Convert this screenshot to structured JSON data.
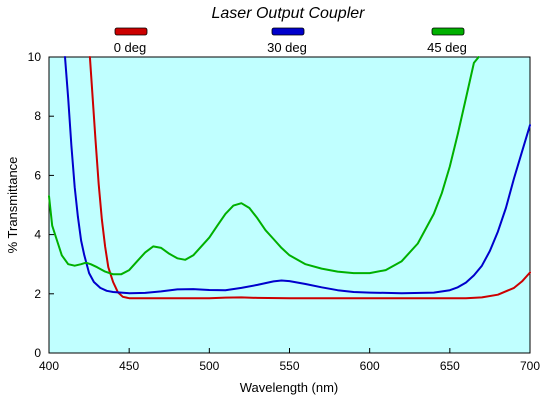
{
  "chart_data": {
    "type": "line",
    "title": "Laser Output Coupler",
    "xlabel": "Wavelength (nm)",
    "ylabel": "%  Transmittance",
    "xlim": [
      400,
      700
    ],
    "ylim": [
      0,
      10
    ],
    "xticks": [
      400,
      450,
      500,
      550,
      600,
      650,
      700
    ],
    "yticks": [
      0,
      2,
      4,
      6,
      8,
      10
    ],
    "plot_background": "#c0ffff",
    "grid": false,
    "legend_position": "top",
    "series": [
      {
        "name": "0 deg",
        "color": "#cc0000",
        "x": [
          425.5,
          427,
          429,
          431,
          433,
          435,
          437,
          440,
          443,
          446,
          450,
          460,
          480,
          500,
          510,
          520,
          530,
          550,
          600,
          640,
          660,
          670,
          680,
          690,
          695,
          700
        ],
        "y": [
          10,
          8.8,
          7.2,
          5.7,
          4.5,
          3.6,
          2.9,
          2.4,
          2.05,
          1.9,
          1.85,
          1.85,
          1.85,
          1.85,
          1.87,
          1.88,
          1.86,
          1.85,
          1.85,
          1.85,
          1.85,
          1.88,
          1.97,
          2.2,
          2.42,
          2.72
        ]
      },
      {
        "name": "30 deg",
        "color": "#0000cc",
        "x": [
          410,
          412,
          414,
          416,
          418,
          420,
          422,
          425,
          428,
          432,
          436,
          440,
          450,
          460,
          470,
          480,
          490,
          500,
          510,
          520,
          530,
          540,
          545,
          550,
          560,
          570,
          580,
          590,
          600,
          620,
          640,
          650,
          655,
          660,
          665,
          670,
          675,
          680,
          685,
          690,
          695,
          700
        ],
        "y": [
          10,
          8.6,
          7.0,
          5.6,
          4.6,
          3.8,
          3.3,
          2.7,
          2.4,
          2.2,
          2.1,
          2.06,
          2.02,
          2.03,
          2.08,
          2.15,
          2.16,
          2.13,
          2.12,
          2.2,
          2.3,
          2.42,
          2.45,
          2.43,
          2.33,
          2.22,
          2.12,
          2.06,
          2.04,
          2.02,
          2.04,
          2.12,
          2.22,
          2.38,
          2.62,
          2.95,
          3.45,
          4.1,
          4.9,
          5.9,
          6.8,
          7.7
        ]
      },
      {
        "name": "45 deg",
        "color": "#00b000",
        "x": [
          400,
          402,
          405,
          408,
          412,
          416,
          420,
          423,
          426,
          430,
          435,
          440,
          445,
          450,
          455,
          460,
          465,
          470,
          475,
          480,
          485,
          490,
          495,
          500,
          505,
          510,
          515,
          520,
          525,
          530,
          535,
          540,
          545,
          550,
          560,
          570,
          580,
          590,
          600,
          610,
          620,
          630,
          640,
          645,
          650,
          655,
          660,
          665,
          668
        ],
        "y": [
          5.3,
          4.3,
          3.8,
          3.3,
          3.0,
          2.95,
          3.0,
          3.05,
          3.0,
          2.9,
          2.75,
          2.66,
          2.66,
          2.8,
          3.1,
          3.4,
          3.6,
          3.55,
          3.35,
          3.2,
          3.15,
          3.3,
          3.6,
          3.9,
          4.3,
          4.7,
          4.98,
          5.06,
          4.9,
          4.55,
          4.15,
          3.85,
          3.55,
          3.3,
          3.0,
          2.85,
          2.75,
          2.7,
          2.7,
          2.8,
          3.1,
          3.7,
          4.7,
          5.4,
          6.3,
          7.4,
          8.6,
          9.8,
          10
        ]
      }
    ]
  }
}
